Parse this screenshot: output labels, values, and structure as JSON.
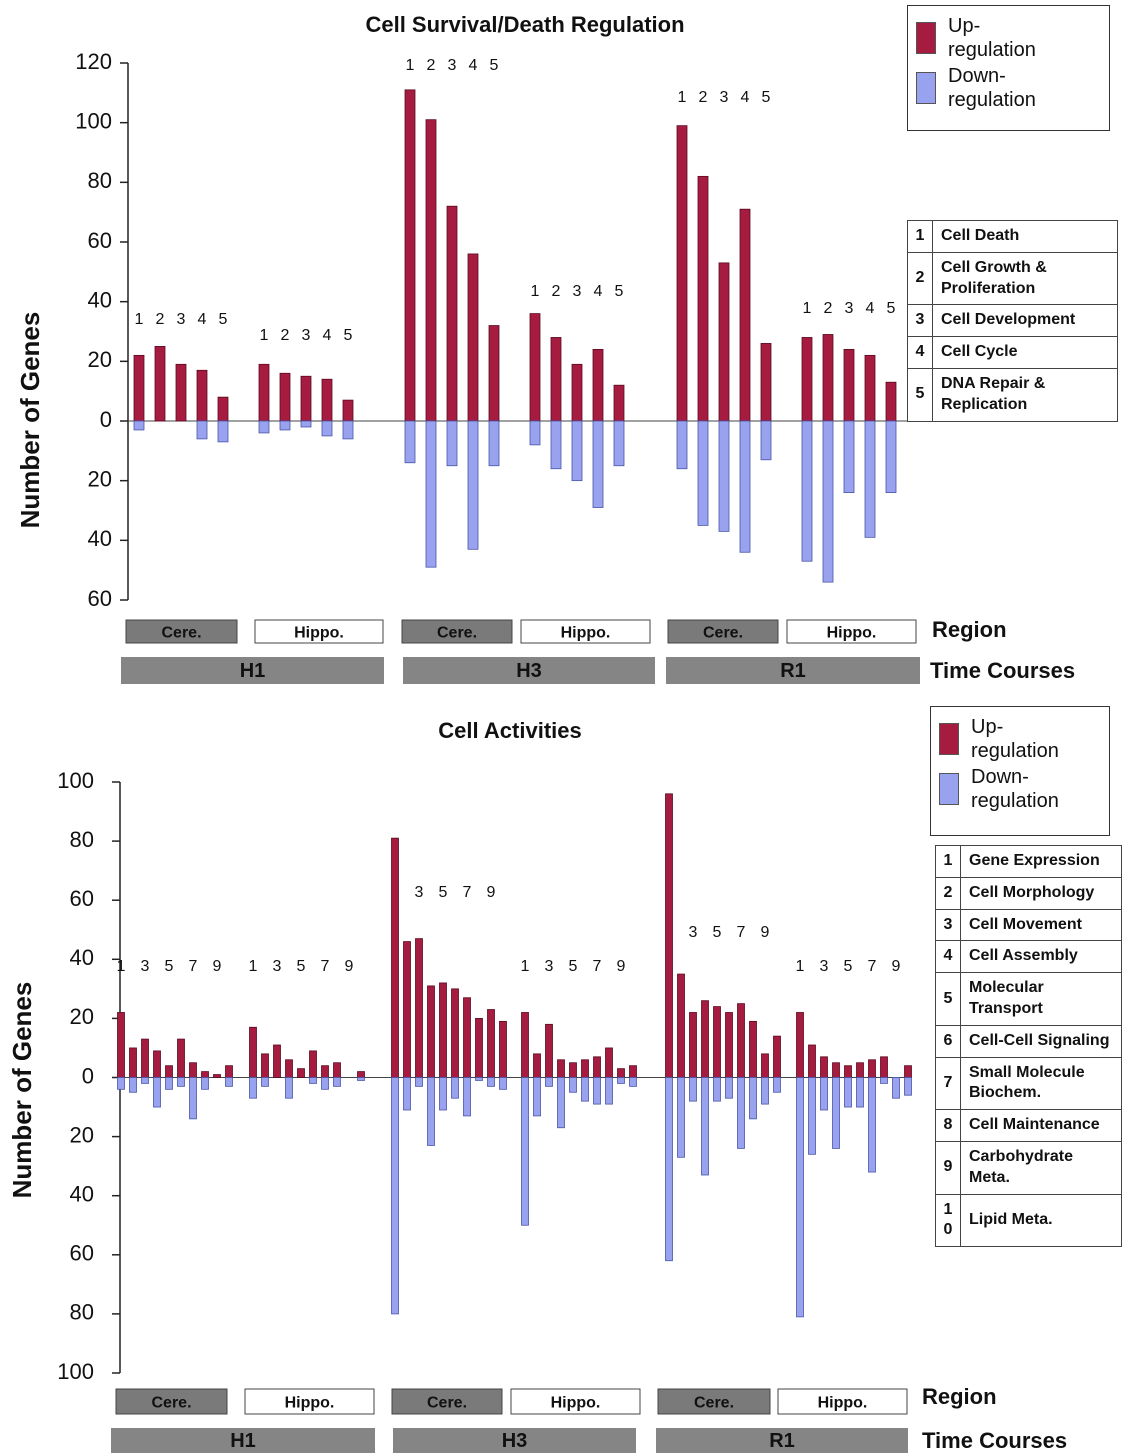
{
  "chart_data": [
    {
      "type": "bar",
      "title": "Cell Survival/Death Regulation",
      "y_label": "Number of Genes",
      "ylim": [
        -60,
        120
      ],
      "yticks": [
        {
          "value": -60,
          "label": "60"
        },
        {
          "value": -40,
          "label": "40"
        },
        {
          "value": -20,
          "label": "20"
        },
        0,
        20,
        40,
        60,
        80,
        100,
        120
      ],
      "categories": [
        "1",
        "2",
        "3",
        "4",
        "5",
        "1",
        "2",
        "3",
        "4",
        "5",
        "1",
        "2",
        "3",
        "4",
        "5",
        "1",
        "2",
        "3",
        "4",
        "5",
        "1",
        "2",
        "3",
        "4",
        "5",
        "1",
        "2",
        "3",
        "4",
        "5"
      ],
      "series": [
        {
          "name": "Up-regulation",
          "color": "#a51c40",
          "values": [
            22,
            25,
            19,
            17,
            8,
            19,
            16,
            15,
            14,
            7,
            111,
            101,
            72,
            56,
            32,
            36,
            28,
            19,
            24,
            12,
            99,
            82,
            53,
            71,
            26,
            28,
            29,
            24,
            22,
            13
          ]
        },
        {
          "name": "Down-regulation",
          "color": "#98a2ee",
          "values": [
            -3,
            0,
            0,
            -6,
            -7,
            -4,
            -3,
            -2,
            -5,
            -6,
            -14,
            -49,
            -15,
            -43,
            -15,
            -8,
            -16,
            -20,
            -29,
            -15,
            -16,
            -35,
            -37,
            -44,
            -13,
            -47,
            -54,
            -24,
            -39,
            -24
          ]
        }
      ],
      "regions": [
        "Cere.",
        "Hippo.",
        "Cere.",
        "Hippo.",
        "Cere.",
        "Hippo."
      ],
      "region_label": "Region",
      "time_courses": [
        "H1",
        "H3",
        "R1"
      ],
      "time_courses_label": "Time Courses",
      "key": [
        {
          "number": 1,
          "label": "Cell Death"
        },
        {
          "number": 2,
          "label": "Cell Growth & Proliferation"
        },
        {
          "number": 3,
          "label": "Cell Development"
        },
        {
          "number": 4,
          "label": "Cell Cycle"
        },
        {
          "number": 5,
          "label": "DNA Repair & Replication"
        }
      ]
    },
    {
      "type": "bar",
      "title": "Cell Activities",
      "y_label": "Number of Genes",
      "ylim": [
        -100,
        100
      ],
      "yticks": [
        {
          "value": -100,
          "label": "100"
        },
        {
          "value": -80,
          "label": "80"
        },
        {
          "value": -60,
          "label": "60"
        },
        {
          "value": -40,
          "label": "40"
        },
        {
          "value": -20,
          "label": "20"
        },
        0,
        20,
        40,
        60,
        80,
        100
      ],
      "categories": [
        "1",
        null,
        "3",
        null,
        "5",
        null,
        "7",
        null,
        "9",
        null,
        "1",
        null,
        "3",
        null,
        "5",
        null,
        "7",
        null,
        "9",
        null,
        "1",
        null,
        "3",
        null,
        "5",
        null,
        "7",
        null,
        "9",
        null,
        "1",
        null,
        "3",
        null,
        "5",
        null,
        "7",
        null,
        "9",
        null,
        "1",
        null,
        "3",
        null,
        "5",
        null,
        "7",
        null,
        "9",
        null,
        "1",
        null,
        "3",
        null,
        "5",
        null,
        "7",
        null,
        "9",
        null
      ],
      "series": [
        {
          "name": "Up-regulation",
          "color": "#a51c40",
          "values": [
            22,
            10,
            13,
            9,
            4,
            13,
            5,
            2,
            1,
            4,
            17,
            8,
            11,
            6,
            3,
            9,
            4,
            5,
            0,
            2,
            81,
            46,
            47,
            31,
            32,
            30,
            27,
            20,
            23,
            19,
            22,
            8,
            18,
            6,
            5,
            6,
            7,
            10,
            3,
            4,
            96,
            35,
            22,
            26,
            24,
            22,
            25,
            19,
            8,
            14,
            22,
            11,
            7,
            5,
            4,
            5,
            6,
            7,
            0,
            4
          ]
        },
        {
          "name": "Down-regulation",
          "color": "#98a2ee",
          "values": [
            -4,
            -5,
            -2,
            -10,
            -4,
            -3,
            -14,
            -4,
            0,
            -3,
            -7,
            -3,
            0,
            -7,
            0,
            -2,
            -4,
            -3,
            0,
            -1,
            -80,
            -11,
            -3,
            -23,
            -11,
            -7,
            -13,
            -1,
            -3,
            -4,
            -50,
            -13,
            -3,
            -17,
            -5,
            -8,
            -9,
            -9,
            -2,
            -3,
            -62,
            -27,
            -8,
            -33,
            -8,
            -7,
            -24,
            -14,
            -9,
            -5,
            -81,
            -26,
            -11,
            -24,
            -10,
            -10,
            -32,
            -2,
            -7,
            -6
          ]
        }
      ],
      "regions": [
        "Cere.",
        "Hippo.",
        "Cere.",
        "Hippo.",
        "Cere.",
        "Hippo."
      ],
      "region_label": "Region",
      "time_courses": [
        "H1",
        "H3",
        "R1"
      ],
      "time_courses_label": "Time Courses",
      "key": [
        {
          "number": 1,
          "label": "Gene Expression"
        },
        {
          "number": 2,
          "label": "Cell Morphology"
        },
        {
          "number": 3,
          "label": "Cell Movement"
        },
        {
          "number": 4,
          "label": "Cell Assembly"
        },
        {
          "number": 5,
          "label": "Molecular Transport"
        },
        {
          "number": 6,
          "label": "Cell-Cell Signaling"
        },
        {
          "number": 7,
          "label": "Small Molecule Biochem."
        },
        {
          "number": 8,
          "label": "Cell Maintenance"
        },
        {
          "number": 9,
          "label": "Carbohydrate Meta."
        },
        {
          "number": 10,
          "label": "Lipid Meta."
        }
      ]
    }
  ]
}
